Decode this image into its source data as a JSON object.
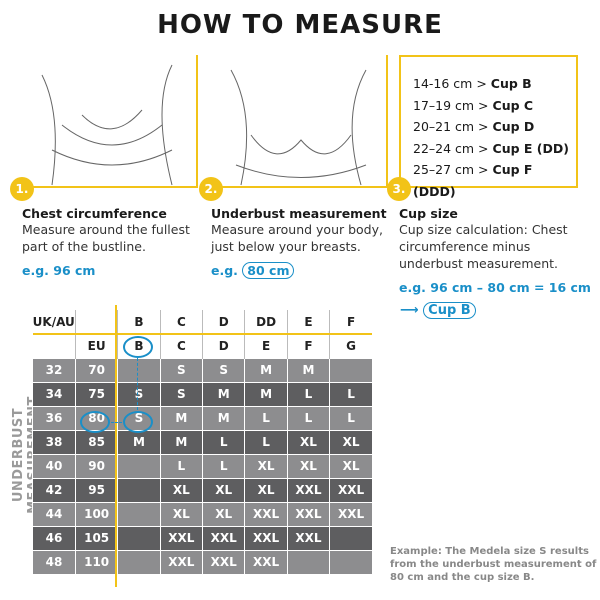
{
  "title": "HOW TO MEASURE",
  "steps": [
    {
      "num": "1.",
      "heading": "Chest circumference",
      "text": "Measure around the fullest part of the bustline.",
      "example": "e.g. 96 cm"
    },
    {
      "num": "2.",
      "heading": "Underbust measurement",
      "text": "Measure around your body, just below your breasts.",
      "example_prefix": "e.g.",
      "example": "80 cm"
    },
    {
      "num": "3.",
      "heading": "Cup size",
      "text": "Cup size calculation: Chest circumference minus underbust measurement.",
      "example": "e.g. 96 cm – 80 cm = 16 cm",
      "result": "Cup B"
    }
  ],
  "cup_table": [
    {
      "range": "14-16 cm >",
      "cup": "Cup B"
    },
    {
      "range": "17–19 cm >",
      "cup": "Cup C"
    },
    {
      "range": "20–21 cm >",
      "cup": "Cup D"
    },
    {
      "range": "22–24 cm >",
      "cup": "Cup E (DD)"
    },
    {
      "range": "25–27 cm >",
      "cup": "Cup F (DDD)"
    }
  ],
  "size_table": {
    "side_label": "UNDERBUST MEASUREMENT",
    "header_uk": [
      "UK/AU",
      "",
      "B",
      "C",
      "D",
      "DD",
      "E",
      "F"
    ],
    "header_eu": [
      "",
      "EU",
      "B",
      "C",
      "D",
      "E",
      "F",
      "G"
    ],
    "rows": [
      [
        "32",
        "70",
        "",
        "S",
        "S",
        "M",
        "M",
        ""
      ],
      [
        "34",
        "75",
        "S",
        "S",
        "M",
        "M",
        "L",
        "L"
      ],
      [
        "36",
        "80",
        "S",
        "M",
        "M",
        "L",
        "L",
        "L"
      ],
      [
        "38",
        "85",
        "M",
        "M",
        "L",
        "L",
        "XL",
        "XL"
      ],
      [
        "40",
        "90",
        "",
        "L",
        "L",
        "XL",
        "XL",
        "XL"
      ],
      [
        "42",
        "95",
        "",
        "XL",
        "XL",
        "XL",
        "XXL",
        "XXL"
      ],
      [
        "44",
        "100",
        "",
        "XL",
        "XL",
        "XXL",
        "XXL",
        "XXL"
      ],
      [
        "46",
        "105",
        "",
        "XXL",
        "XXL",
        "XXL",
        "XXL",
        ""
      ],
      [
        "48",
        "110",
        "",
        "XXL",
        "XXL",
        "XXL",
        "",
        ""
      ]
    ]
  },
  "note": "Example: The Medela size S results from the underbust measurement of 80 cm and the cup size B.",
  "colors": {
    "accent": "#f2c318",
    "highlight": "#1a8fc8",
    "row_light": "#8d8d8f",
    "row_dark": "#5e5e60"
  }
}
